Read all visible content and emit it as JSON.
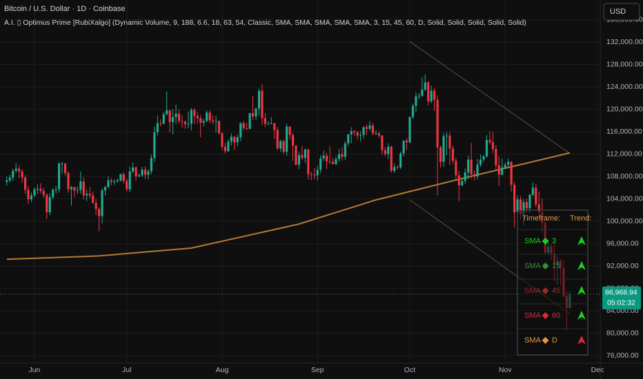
{
  "chart_data": {
    "type": "candlestick",
    "title": "Bitcoin / U.S. Dollar · 1D · Coinbase",
    "subtitle": "A.I. ▯ Optimus Prime [RubiXalgo] (Dynamic Volume, 9, 188, 6.6, 18, 63, 54, Classic, SMA, SMA, SMA, SMA, SMA, 3, 15, 45, 60, D, Solid, Solid, Solid, Solid, Solid)",
    "currency": "USD",
    "up_color": "#22ab94",
    "down_color": "#f23645",
    "xlim": [
      -2.2,
      192.9
    ],
    "xticks": [
      {
        "value": 9,
        "label": "Jun"
      },
      {
        "value": 39,
        "label": "Jul"
      },
      {
        "value": 70,
        "label": "Aug"
      },
      {
        "value": 101,
        "label": "Sep"
      },
      {
        "value": 131,
        "label": "Oct"
      },
      {
        "value": 162,
        "label": "Nov"
      },
      {
        "value": 192,
        "label": "Dec"
      }
    ],
    "ylim": [
      74646,
      139508
    ],
    "yticks": [
      {
        "value": 76000,
        "label": "76,000.00"
      },
      {
        "value": 80000,
        "label": "80,000.00"
      },
      {
        "value": 84000,
        "label": "84,000.00"
      },
      {
        "value": 88000,
        "label": "88,000.00"
      },
      {
        "value": 92000,
        "label": "92,000.00"
      },
      {
        "value": 96000,
        "label": "96,000.00"
      },
      {
        "value": 100000,
        "label": "100,000.00"
      },
      {
        "value": 104000,
        "label": "104,000.00"
      },
      {
        "value": 108000,
        "label": "108,000.00"
      },
      {
        "value": 112000,
        "label": "112,000.00"
      },
      {
        "value": 116000,
        "label": "116,000.00"
      },
      {
        "value": 120000,
        "label": "120,000.00"
      },
      {
        "value": 124000,
        "label": "124,000.00"
      },
      {
        "value": 128000,
        "label": "128,000.00"
      },
      {
        "value": 132000,
        "label": "132,000.00"
      },
      {
        "value": 136000,
        "label": "136,000.00"
      }
    ],
    "grid": true,
    "price_label": "86,968.94",
    "countdown": "05:02:32",
    "candles": [
      [
        107000,
        108000,
        106400,
        107300
      ],
      [
        107300,
        108300,
        106900,
        107800
      ],
      [
        107800,
        109400,
        107200,
        109000
      ],
      [
        109000,
        110400,
        108600,
        109400
      ],
      [
        109400,
        110000,
        107700,
        108900
      ],
      [
        108900,
        109300,
        106900,
        107800
      ],
      [
        107800,
        108200,
        104900,
        105600
      ],
      [
        105600,
        106300,
        103100,
        103900
      ],
      [
        103900,
        105100,
        103400,
        104600
      ],
      [
        104600,
        106000,
        104300,
        105700
      ],
      [
        105700,
        106600,
        104900,
        105800
      ],
      [
        105800,
        106800,
        104900,
        105400
      ],
      [
        105400,
        106000,
        104200,
        104700
      ],
      [
        104700,
        105000,
        100400,
        101600
      ],
      [
        101600,
        105000,
        101100,
        104300
      ],
      [
        104300,
        105900,
        103900,
        105600
      ],
      [
        105600,
        106300,
        104900,
        105700
      ],
      [
        105700,
        110500,
        105100,
        110300
      ],
      [
        110300,
        110600,
        108500,
        110300
      ],
      [
        110300,
        110400,
        108100,
        108600
      ],
      [
        108600,
        108900,
        105100,
        105700
      ],
      [
        105700,
        106300,
        102800,
        106100
      ],
      [
        106100,
        106200,
        104300,
        105500
      ],
      [
        105500,
        106200,
        104900,
        105600
      ],
      [
        105600,
        108900,
        104900,
        107100
      ],
      [
        107100,
        107800,
        103900,
        104600
      ],
      [
        104600,
        105600,
        103600,
        104900
      ],
      [
        104900,
        106100,
        104100,
        104600
      ],
      [
        104600,
        105300,
        103100,
        103300
      ],
      [
        103300,
        104000,
        101100,
        102200
      ],
      [
        102200,
        102500,
        98200,
        100900
      ],
      [
        100900,
        105900,
        99600,
        105500
      ],
      [
        105500,
        106300,
        104600,
        106100
      ],
      [
        106100,
        108000,
        105900,
        107300
      ],
      [
        107300,
        107700,
        106400,
        107000
      ],
      [
        107000,
        107500,
        106500,
        107100
      ],
      [
        107100,
        107600,
        106900,
        107300
      ],
      [
        107300,
        108500,
        107000,
        108400
      ],
      [
        108400,
        108800,
        106700,
        107200
      ],
      [
        107200,
        107600,
        105300,
        105700
      ],
      [
        105700,
        109800,
        105200,
        108900
      ],
      [
        108900,
        110500,
        108600,
        109600
      ],
      [
        109600,
        109800,
        107300,
        108000
      ],
      [
        108000,
        108500,
        107900,
        108200
      ],
      [
        108200,
        109700,
        107900,
        109200
      ],
      [
        109200,
        109800,
        107500,
        108300
      ],
      [
        108300,
        109300,
        107500,
        108900
      ],
      [
        108900,
        111900,
        108400,
        111300
      ],
      [
        111300,
        116900,
        110600,
        115900
      ],
      [
        115900,
        118900,
        115300,
        117500
      ],
      [
        117500,
        118200,
        116900,
        117400
      ],
      [
        117400,
        119500,
        117300,
        119100
      ],
      [
        119100,
        123200,
        118900,
        119800
      ],
      [
        119800,
        119900,
        115800,
        117700
      ],
      [
        117700,
        120000,
        115500,
        118600
      ],
      [
        118600,
        120800,
        117400,
        119200
      ],
      [
        119200,
        120000,
        117400,
        117900
      ],
      [
        117900,
        118900,
        116700,
        117800
      ],
      [
        117800,
        118000,
        116500,
        117300
      ],
      [
        117300,
        119600,
        116600,
        117400
      ],
      [
        117400,
        120200,
        116200,
        119900
      ],
      [
        119900,
        120200,
        117300,
        118800
      ],
      [
        118800,
        119500,
        117400,
        118400
      ],
      [
        118400,
        119000,
        115000,
        117600
      ],
      [
        117600,
        118300,
        116900,
        117900
      ],
      [
        117900,
        119800,
        117700,
        119400
      ],
      [
        119400,
        119800,
        117500,
        118000
      ],
      [
        118000,
        118900,
        117300,
        117800
      ],
      [
        117800,
        118800,
        115800,
        117900
      ],
      [
        117900,
        118000,
        115500,
        115700
      ],
      [
        115700,
        116000,
        112700,
        113300
      ],
      [
        113300,
        114000,
        112100,
        112500
      ],
      [
        112500,
        114600,
        112400,
        114200
      ],
      [
        114200,
        115700,
        113500,
        115100
      ],
      [
        115100,
        115200,
        112700,
        114100
      ],
      [
        114100,
        115500,
        113400,
        115000
      ],
      [
        115000,
        117700,
        114300,
        117500
      ],
      [
        117500,
        117900,
        116300,
        116600
      ],
      [
        116600,
        117600,
        116300,
        116500
      ],
      [
        116500,
        119300,
        116400,
        119300
      ],
      [
        119300,
        122300,
        118100,
        118700
      ],
      [
        118700,
        120300,
        118100,
        120100
      ],
      [
        120100,
        123700,
        118900,
        123300
      ],
      [
        123300,
        124500,
        117200,
        118400
      ],
      [
        118400,
        119300,
        116800,
        117400
      ],
      [
        117400,
        117900,
        117200,
        117400
      ],
      [
        117400,
        118600,
        117300,
        117500
      ],
      [
        117500,
        117600,
        114700,
        116300
      ],
      [
        116300,
        116800,
        112700,
        113000
      ],
      [
        113000,
        114600,
        112400,
        114300
      ],
      [
        114300,
        114600,
        112000,
        112400
      ],
      [
        112400,
        117400,
        111700,
        116900
      ],
      [
        116900,
        117000,
        114600,
        115400
      ],
      [
        115400,
        115800,
        110800,
        113500
      ],
      [
        113500,
        113600,
        109900,
        110100
      ],
      [
        110100,
        112400,
        109300,
        111800
      ],
      [
        111800,
        113400,
        110900,
        111300
      ],
      [
        111300,
        113000,
        110400,
        112800
      ],
      [
        112800,
        112900,
        107400,
        108400
      ],
      [
        108400,
        108800,
        107300,
        108300
      ],
      [
        108300,
        109500,
        107500,
        108200
      ],
      [
        108200,
        109900,
        107300,
        109200
      ],
      [
        109200,
        111800,
        108600,
        111200
      ],
      [
        111200,
        112600,
        110700,
        111700
      ],
      [
        111700,
        112200,
        109300,
        110700
      ],
      [
        110700,
        113400,
        110200,
        110600
      ],
      [
        110600,
        111300,
        110200,
        110200
      ],
      [
        110200,
        111600,
        110000,
        111100
      ],
      [
        111100,
        112900,
        110600,
        112000
      ],
      [
        112000,
        113200,
        110800,
        111500
      ],
      [
        111500,
        114300,
        110900,
        113900
      ],
      [
        113900,
        115600,
        113400,
        115500
      ],
      [
        115500,
        116800,
        113900,
        116100
      ],
      [
        116100,
        116300,
        115200,
        115900
      ],
      [
        115900,
        116100,
        114600,
        115300
      ],
      [
        115300,
        116100,
        114300,
        115400
      ],
      [
        115400,
        117000,
        114800,
        116800
      ],
      [
        116800,
        117300,
        115400,
        116500
      ],
      [
        116500,
        117900,
        116200,
        117100
      ],
      [
        117100,
        117500,
        115300,
        115700
      ],
      [
        115700,
        116300,
        115400,
        115700
      ],
      [
        115700,
        116000,
        114900,
        115300
      ],
      [
        115300,
        115400,
        111900,
        112700
      ],
      [
        112700,
        113300,
        111600,
        112000
      ],
      [
        112000,
        113900,
        111100,
        113300
      ],
      [
        113300,
        113500,
        108700,
        109000
      ],
      [
        109000,
        110300,
        108600,
        109700
      ],
      [
        109700,
        110000,
        109200,
        109600
      ],
      [
        109600,
        112400,
        109300,
        112100
      ],
      [
        112100,
        114400,
        111600,
        114400
      ],
      [
        114400,
        114800,
        112700,
        114100
      ],
      [
        114100,
        118700,
        113900,
        118600
      ],
      [
        118600,
        121000,
        118300,
        120600
      ],
      [
        120600,
        123000,
        119500,
        122300
      ],
      [
        122300,
        122900,
        121800,
        122400
      ],
      [
        122400,
        125700,
        122200,
        123500
      ],
      [
        123500,
        126200,
        123200,
        124800
      ],
      [
        124800,
        125000,
        120700,
        121400
      ],
      [
        121400,
        124200,
        121100,
        123300
      ],
      [
        123300,
        123800,
        119700,
        121700
      ],
      [
        121700,
        122500,
        104600,
        113200
      ],
      [
        113200,
        113500,
        109600,
        110600
      ],
      [
        110600,
        115800,
        109700,
        115200
      ],
      [
        115200,
        115900,
        111800,
        115300
      ],
      [
        115300,
        115900,
        110000,
        113000
      ],
      [
        113000,
        113500,
        110200,
        110800
      ],
      [
        110800,
        111300,
        107500,
        108200
      ],
      [
        108200,
        109000,
        103600,
        106400
      ],
      [
        106400,
        107500,
        106300,
        107200
      ],
      [
        107200,
        109400,
        106700,
        108700
      ],
      [
        108700,
        111700,
        107500,
        111000
      ],
      [
        111000,
        114000,
        107600,
        108400
      ],
      [
        108400,
        109100,
        107300,
        108000
      ],
      [
        108000,
        111100,
        107500,
        110100
      ],
      [
        110100,
        111900,
        109700,
        111000
      ],
      [
        111000,
        111800,
        110600,
        111600
      ],
      [
        111600,
        115400,
        111300,
        114500
      ],
      [
        114500,
        116100,
        113700,
        114100
      ],
      [
        114100,
        116000,
        112200,
        112900
      ],
      [
        112900,
        113600,
        109100,
        110000
      ],
      [
        110000,
        111600,
        106300,
        108300
      ],
      [
        108300,
        111200,
        108200,
        109600
      ],
      [
        109600,
        110500,
        109400,
        110100
      ],
      [
        110100,
        111200,
        109700,
        110600
      ],
      [
        110600,
        110700,
        105300,
        106500
      ],
      [
        106500,
        107000,
        98900,
        101600
      ],
      [
        101600,
        104600,
        98900,
        103900
      ],
      [
        103900,
        104500,
        100300,
        101300
      ],
      [
        101300,
        104000,
        99300,
        103400
      ],
      [
        103400,
        104000,
        101500,
        102300
      ],
      [
        102300,
        104900,
        101500,
        104700
      ],
      [
        104700,
        107000,
        104500,
        106000
      ],
      [
        106000,
        106700,
        102500,
        103000
      ],
      [
        103000,
        105300,
        100800,
        101600
      ],
      [
        101600,
        104100,
        98000,
        99700
      ],
      [
        99700,
        99900,
        94000,
        94400
      ],
      [
        94400,
        96800,
        94000,
        95500
      ],
      [
        95500,
        96000,
        93000,
        94200
      ],
      [
        94200,
        96000,
        89300,
        92200
      ],
      [
        92200,
        93800,
        88600,
        92900
      ],
      [
        92900,
        93200,
        88500,
        91600
      ],
      [
        91600,
        93000,
        86300,
        86600
      ],
      [
        86600,
        87500,
        80600,
        84500
      ],
      [
        84500,
        87500,
        84400,
        86968.94
      ]
    ],
    "lines": [
      {
        "color": "#c8873a",
        "x": [
          0,
          30,
          60,
          95,
          120,
          150,
          183
        ],
        "values": [
          93200,
          93800,
          95200,
          99500,
          103800,
          107900,
          112200
        ]
      },
      {
        "color": "#8c6a48",
        "x": [
          131,
          183
        ],
        "values": [
          132100,
          112100
        ]
      },
      {
        "color": "#8c6a48",
        "x": [
          131,
          183
        ],
        "values": [
          103800,
          83500
        ]
      }
    ],
    "table": {
      "header": [
        "Timeframe:",
        "Trend:"
      ],
      "header_color": "#e09a4a",
      "rows": [
        {
          "ma": "SMA",
          "period": 3,
          "color": "#19d21e"
        },
        {
          "ma": "SMA",
          "period": 15,
          "color": "#3c8a3c"
        },
        {
          "ma": "SMA",
          "period": 45,
          "color": "#9c2a2a"
        },
        {
          "ma": "SMA",
          "period": 60,
          "color": "#e0283a"
        },
        {
          "ma": "SMA",
          "period": "D",
          "color": "#e09a4a"
        }
      ]
    }
  }
}
